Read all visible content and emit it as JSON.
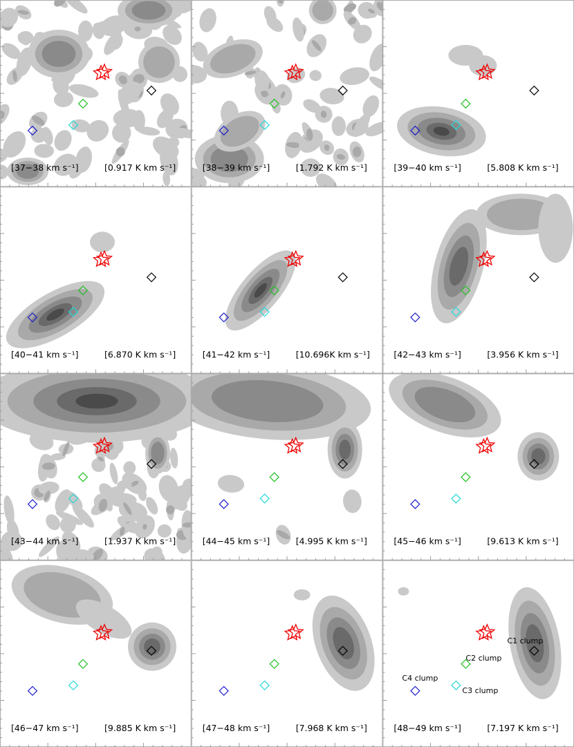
{
  "panels": [
    {
      "velocity": "[37−38 km s⁻¹]",
      "intensity": "[0.917 K km s⁻¹]"
    },
    {
      "velocity": "[38−39 km s⁻¹]",
      "intensity": "[1.792 K km s⁻¹]"
    },
    {
      "velocity": "[39−40 km s⁻¹]",
      "intensity": "[5.808 K km s⁻¹]"
    },
    {
      "velocity": "[40−41 km s⁻¹]",
      "intensity": "[6.870 K km s⁻¹]"
    },
    {
      "velocity": "[41−42 km s⁻¹]",
      "intensity": "[10.696K km s⁻¹]"
    },
    {
      "velocity": "[42−43 km s⁻¹]",
      "intensity": "[3.956 K km s⁻¹]"
    },
    {
      "velocity": "[43−44 km s⁻¹]",
      "intensity": "[1.937 K km s⁻¹]"
    },
    {
      "velocity": "[44−45 km s⁻¹]",
      "intensity": "[4.995 K km s⁻¹]"
    },
    {
      "velocity": "[45−46 km s⁻¹]",
      "intensity": "[9.613 K km s⁻¹]"
    },
    {
      "velocity": "[46−47 km s⁻¹]",
      "intensity": "[9.885 K km s⁻¹]"
    },
    {
      "velocity": "[47−48 km s⁻¹]",
      "intensity": "[7.968 K km s⁻¹]"
    },
    {
      "velocity": "[48−49 km s⁻¹]",
      "intensity": "[7.197 K km s⁻¹]"
    }
  ],
  "clump_labels": [
    "C1 clump",
    "C2 clump",
    "C3 clump",
    "C4 clump"
  ]
}
